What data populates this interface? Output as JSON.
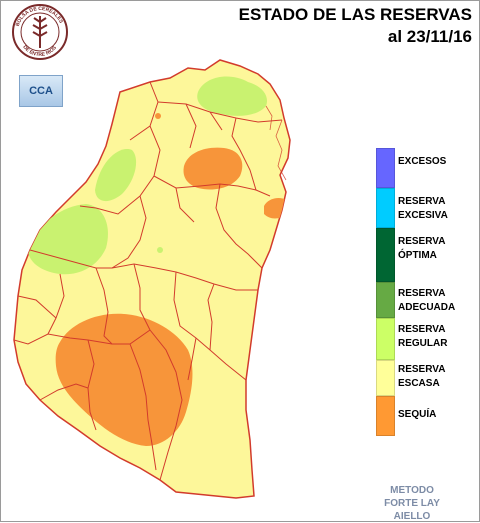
{
  "header": {
    "title_line1": "ESTADO DE LAS RESERVAS",
    "title_line2": "al 23/11/16"
  },
  "logos": {
    "seal_text_top": "BOLSA DE CEREALES",
    "seal_text_bottom": "DE ENTRE RIOS",
    "cca_text": "CCA"
  },
  "legend": [
    {
      "line1": "EXCESOS",
      "line2": "",
      "color": "#6666ff"
    },
    {
      "line1": "RESERVA",
      "line2": "EXCESIVA",
      "color": "#00ccff"
    },
    {
      "line1": "RESERVA",
      "line2": "ÓPTIMA",
      "color": "#006633"
    },
    {
      "line1": "RESERVA",
      "line2": "ADECUADA",
      "color": "#66aa44"
    },
    {
      "line1": "RESERVA",
      "line2": "REGULAR",
      "color": "#ccff66"
    },
    {
      "line1": "RESERVA",
      "line2": "ESCASA",
      "color": "#ffff99"
    },
    {
      "line1": "SEQUÍA",
      "line2": "",
      "color": "#ff9933"
    }
  ],
  "method": {
    "line1": "METODO",
    "line2": "FORTE LAY",
    "line3": "AIELLO"
  },
  "map_colors": {
    "escasa": "#fdf79a",
    "regular": "#c9f270",
    "sequia": "#f7953a",
    "border": "#d23b2c"
  }
}
